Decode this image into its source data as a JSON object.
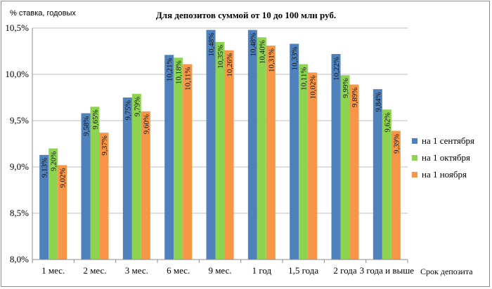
{
  "chart_data": {
    "type": "bar",
    "title": "Для депозитов суммой от 10 до 100 млн руб.",
    "unit_label": "% ставка, годовых",
    "xlabel": "Срок депозита",
    "ylim": [
      8.0,
      10.5
    ],
    "ytick_step": 0.5,
    "yticks": [
      "8,0%",
      "8,5%",
      "9,0%",
      "9,5%",
      "10,0%",
      "10,5%"
    ],
    "grid": true,
    "legend_position": "right",
    "categories": [
      "1 мес.",
      "2 мес.",
      "3 мес.",
      "6 мес.",
      "9 мес.",
      "1 год",
      "1,5 года",
      "2 года",
      "3 года и выше"
    ],
    "series": [
      {
        "name": "на 1 сентября",
        "color": "#4f81bd",
        "values": [
          9.13,
          9.58,
          9.75,
          10.21,
          10.48,
          10.48,
          10.33,
          10.22,
          9.84
        ],
        "labels": [
          "9,13%",
          "9,58%",
          "9,75%",
          "10,21%",
          "10,48%",
          "10,48%",
          "10,33%",
          "10,22%",
          "9,84%"
        ]
      },
      {
        "name": "на 1 октября",
        "color": "#8ed450",
        "values": [
          9.2,
          9.65,
          9.79,
          10.18,
          10.35,
          10.4,
          10.11,
          9.99,
          9.62
        ],
        "labels": [
          "9,20%",
          "9,65%",
          "9,79%",
          "10,18%",
          "10,35%",
          "10,40%",
          "10,11%",
          "9,99%",
          "9,62%"
        ]
      },
      {
        "name": "на 1 ноября",
        "color": "#f79646",
        "values": [
          9.02,
          9.37,
          9.6,
          10.11,
          10.26,
          10.31,
          10.02,
          9.89,
          9.39
        ],
        "labels": [
          "9,02%",
          "9,37%",
          "9,60%",
          "10,11%",
          "10,26%",
          "10,31%",
          "10,02%",
          "9,89%",
          "9,39%"
        ]
      }
    ]
  }
}
